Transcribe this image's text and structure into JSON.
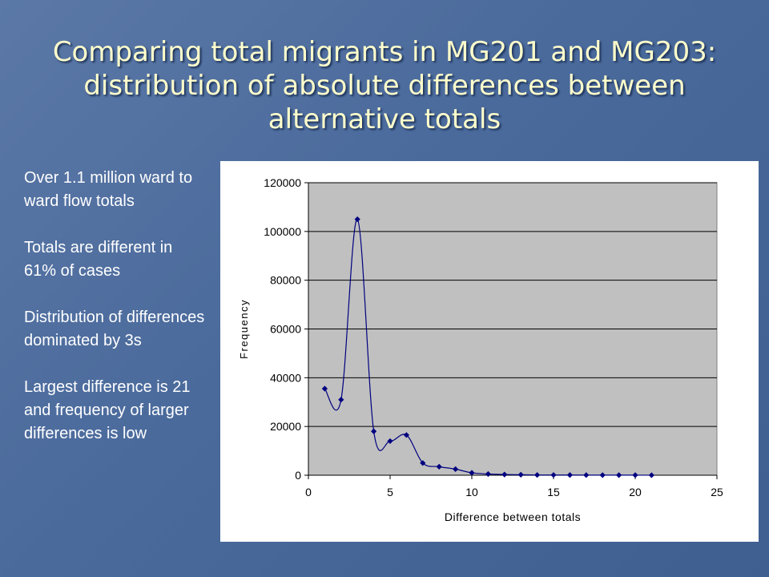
{
  "slide": {
    "title_lines": [
      "Comparing total migrants in MG201 and MG203:",
      "distribution of absolute differences between",
      "alternative totals"
    ],
    "notes": [
      "Over 1.1 million ward to ward flow totals",
      "Totals are different in 61% of cases",
      "Distribution of differences dominated by 3s",
      "Largest difference is 21 and frequency of larger differences is low"
    ]
  },
  "chart_data": {
    "type": "scatter",
    "line": "smoothed",
    "xlabel": "Difference between totals",
    "ylabel": "Frequency",
    "xlim": [
      0,
      25
    ],
    "ylim": [
      0,
      120000
    ],
    "xticks": [
      0,
      5,
      10,
      15,
      20,
      25
    ],
    "yticks": [
      0,
      20000,
      40000,
      60000,
      80000,
      100000,
      120000
    ],
    "grid": "horizontal",
    "plot_background": "#c0c0c0",
    "series_color": "#000080",
    "series": [
      {
        "x": [
          1,
          2,
          3,
          4,
          5,
          6,
          7,
          8,
          9,
          10,
          11,
          12,
          13,
          14,
          15,
          16,
          17,
          18,
          19,
          20,
          21
        ],
        "values": [
          35500,
          31000,
          105000,
          18000,
          14000,
          16500,
          5000,
          3500,
          2500,
          1000,
          500,
          300,
          200,
          100,
          100,
          80,
          60,
          50,
          40,
          30,
          20
        ]
      }
    ]
  }
}
